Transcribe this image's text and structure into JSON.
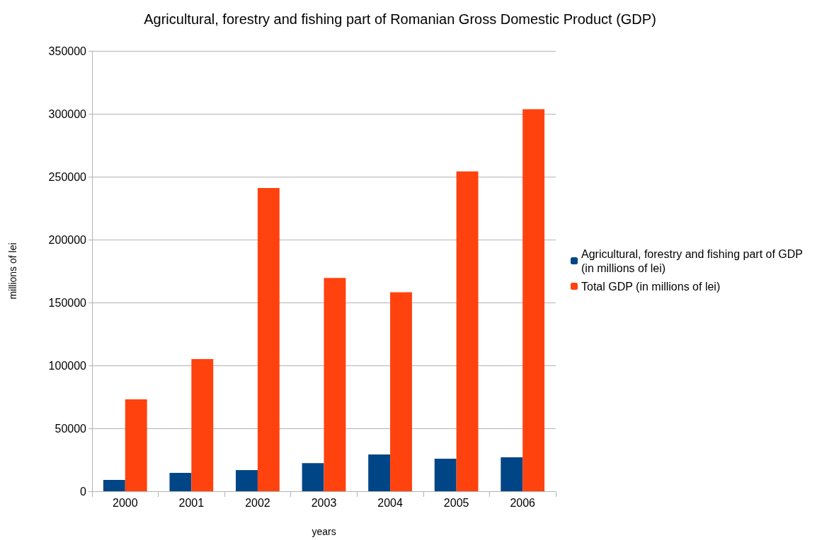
{
  "chart_data": {
    "type": "bar",
    "title": "Agricultural, forestry and fishing part of Romanian Gross Domestic Product (GDP)",
    "xlabel": "years",
    "ylabel": "millions of lei",
    "categories": [
      "2000",
      "2001",
      "2002",
      "2003",
      "2004",
      "2005",
      "2006"
    ],
    "series": [
      {
        "name": "Agricultural, forestry and fishing part of GDP (in millions of lei)",
        "color": "#004586",
        "values": [
          9000,
          14600,
          16800,
          22400,
          29200,
          25800,
          27000
        ]
      },
      {
        "name": "Total GDP (in millions of lei)",
        "color": "#ff420e",
        "values": [
          73000,
          105000,
          241000,
          169500,
          158200,
          254200,
          303600
        ]
      }
    ],
    "ylim": [
      0,
      350000
    ],
    "yticks": [
      0,
      50000,
      100000,
      150000,
      200000,
      250000,
      300000,
      350000
    ],
    "grid": "y",
    "legend": "right"
  }
}
